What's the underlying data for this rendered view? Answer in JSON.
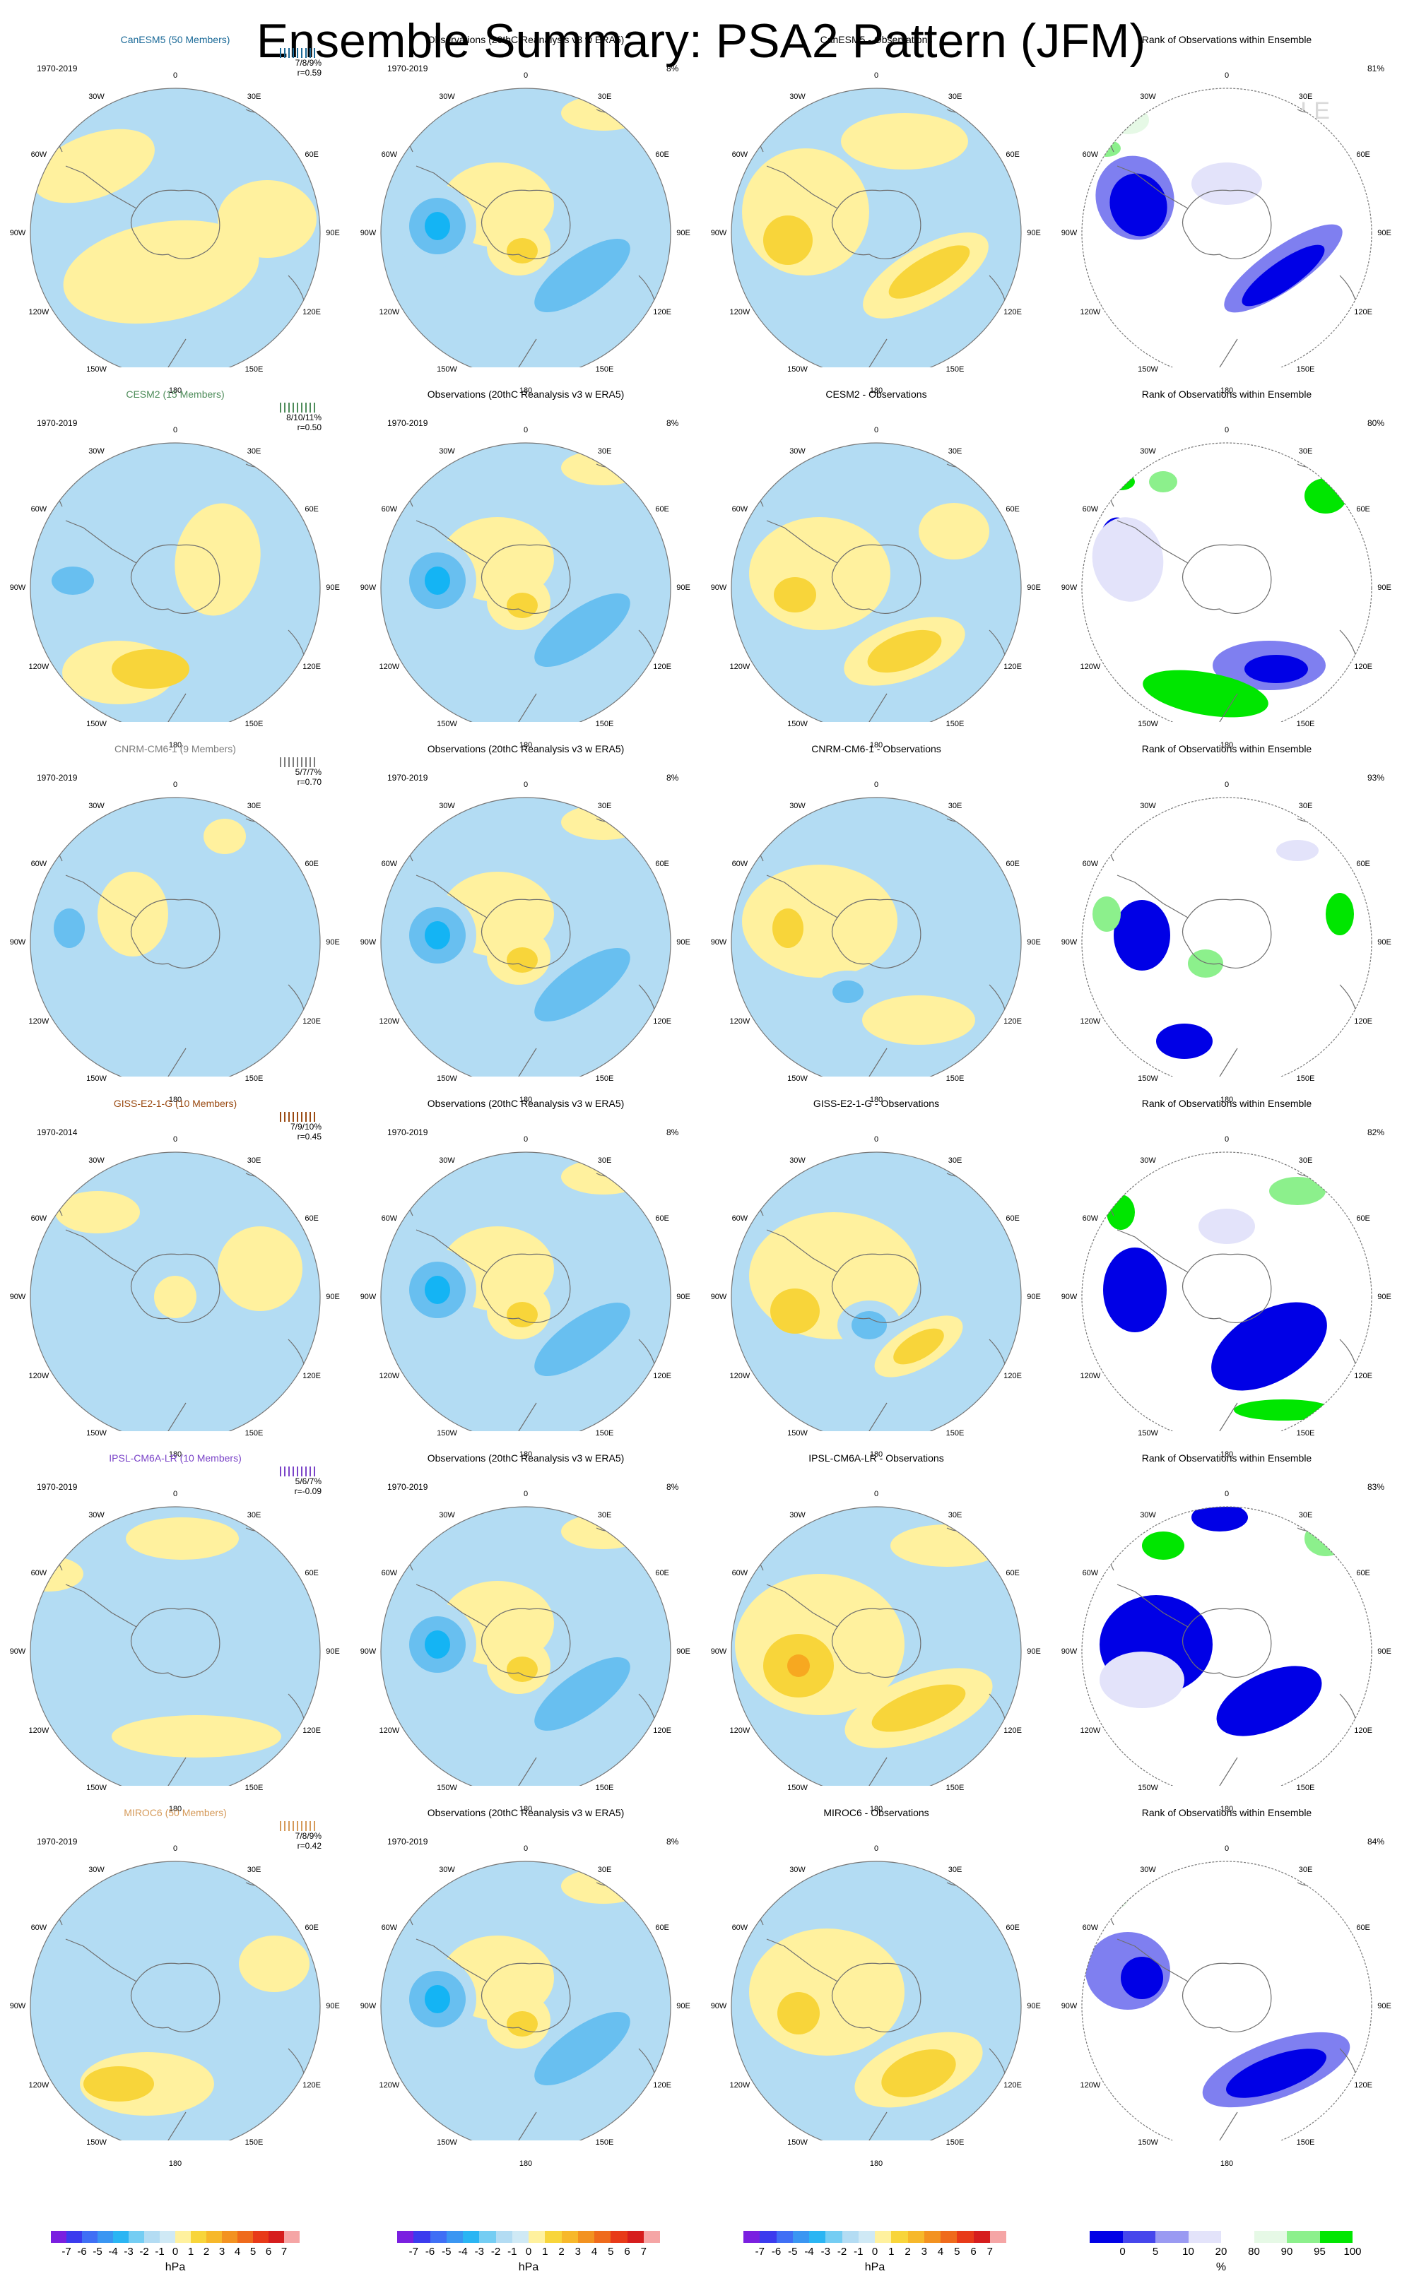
{
  "title": "Ensemble Summary: PSA2 Pattern (JFM)",
  "watermark": "© CVDP-LE",
  "longitude_labels": [
    "0",
    "30E",
    "60E",
    "90E",
    "120E",
    "150E",
    "180",
    "150W",
    "120W",
    "90W",
    "60W",
    "30W"
  ],
  "colors": {
    "pos1": "#fff19e",
    "neg1": "#b3dcf3",
    "pos2": "#f8d53a",
    "neg2": "#68bff0",
    "pos3": "#f7a820",
    "neg3": "#14b4f4",
    "land": "#6f6f6f",
    "rank_low_dark": "#0000e6",
    "rank_low_mid": "#7f7ff0",
    "rank_low_light": "#e3e3fa",
    "rank_high_light": "#e6f9e6",
    "rank_high_mid": "#8cf08c",
    "rank_high_dark": "#00e600"
  },
  "rows": [
    {
      "model": {
        "title": "CanESM5 (50 Members)",
        "title_color": "#1b6a98",
        "period": "1970-2019",
        "pct": "7/8/9%",
        "r": "r=0.59"
      },
      "obs": {
        "title": "Observations (20thC Reanalysis v3 w ERA5)",
        "period": "1970-2019",
        "pct": "8%"
      },
      "diff": {
        "title": "CanESM5 - Observations"
      },
      "rank": {
        "title": "Rank of Observations within Ensemble",
        "pct": "81%"
      }
    },
    {
      "model": {
        "title": "CESM2 (15 Members)",
        "title_color": "#4e8c5a",
        "period": "1970-2019",
        "pct": "8/10/11%",
        "r": "r=0.50"
      },
      "obs": {
        "title": "Observations (20thC Reanalysis v3 w ERA5)",
        "period": "1970-2019",
        "pct": "8%"
      },
      "diff": {
        "title": "CESM2 - Observations"
      },
      "rank": {
        "title": "Rank of Observations within Ensemble",
        "pct": "80%"
      }
    },
    {
      "model": {
        "title": "CNRM-CM6-1 (9 Members)",
        "title_color": "#7c7c7c",
        "period": "1970-2019",
        "pct": "5/7/7%",
        "r": "r=0.70"
      },
      "obs": {
        "title": "Observations (20thC Reanalysis v3 w ERA5)",
        "period": "1970-2019",
        "pct": "8%"
      },
      "diff": {
        "title": "CNRM-CM6-1 - Observations"
      },
      "rank": {
        "title": "Rank of Observations within Ensemble",
        "pct": "93%"
      }
    },
    {
      "model": {
        "title": "GISS-E2-1-G (10 Members)",
        "title_color": "#9a4a12",
        "period": "1970-2014",
        "pct": "7/9/10%",
        "r": "r=0.45"
      },
      "obs": {
        "title": "Observations (20thC Reanalysis v3 w ERA5)",
        "period": "1970-2019",
        "pct": "8%"
      },
      "diff": {
        "title": "GISS-E2-1-G - Observations"
      },
      "rank": {
        "title": "Rank of Observations within Ensemble",
        "pct": "82%"
      }
    },
    {
      "model": {
        "title": "IPSL-CM6A-LR (10 Members)",
        "title_color": "#7a43c8",
        "period": "1970-2019",
        "pct": "5/6/7%",
        "r": "r=-0.09"
      },
      "obs": {
        "title": "Observations (20thC Reanalysis v3 w ERA5)",
        "period": "1970-2019",
        "pct": "8%"
      },
      "diff": {
        "title": "IPSL-CM6A-LR - Observations"
      },
      "rank": {
        "title": "Rank of Observations within Ensemble",
        "pct": "83%"
      }
    },
    {
      "model": {
        "title": "MIROC6 (50 Members)",
        "title_color": "#d59a5a",
        "period": "1970-2019",
        "pct": "7/8/9%",
        "r": "r=0.42"
      },
      "obs": {
        "title": "Observations (20thC Reanalysis v3 w ERA5)",
        "period": "1970-2019",
        "pct": "8%"
      },
      "diff": {
        "title": "MIROC6 - Observations"
      },
      "rank": {
        "title": "Rank of Observations within Ensemble",
        "pct": "84%"
      }
    }
  ],
  "colorbar_hpa": {
    "labels": [
      "-7",
      "-6",
      "-5",
      "-4",
      "-3",
      "-2",
      "-1",
      "0",
      "1",
      "2",
      "3",
      "4",
      "5",
      "6",
      "7"
    ],
    "colors": [
      "#7a1fe0",
      "#3b3bee",
      "#3f6ff5",
      "#3a96f2",
      "#2ab5f3",
      "#74cdf3",
      "#b3dcf3",
      "#cfe9f5",
      "#fff19e",
      "#f8d53a",
      "#f7b82a",
      "#f39220",
      "#ef6a1b",
      "#e83a18",
      "#d61d1d",
      "#f5a5a5"
    ],
    "unit": "hPa"
  },
  "colorbar_rank": {
    "labels": [
      "0",
      "5",
      "10",
      "20",
      "80",
      "90",
      "95",
      "100"
    ],
    "colors": [
      "#0000e6",
      "#4646ec",
      "#9a9af2",
      "#e3e3fa",
      "#ffffff",
      "#e6f9e6",
      "#8cf08c",
      "#00e600"
    ],
    "unit": "%"
  }
}
